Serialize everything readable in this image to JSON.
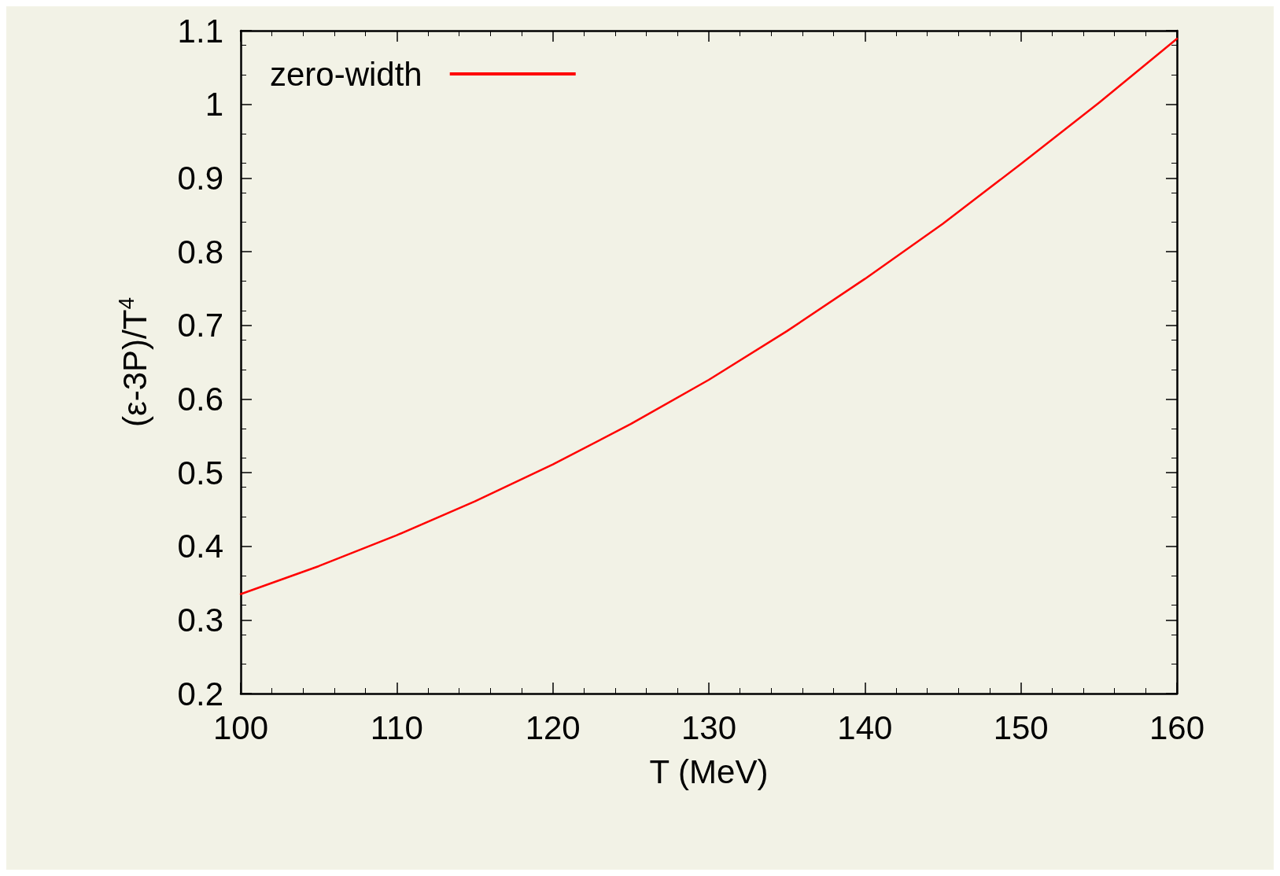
{
  "chart_data": {
    "type": "line",
    "xlabel": "T (MeV)",
    "ylabel": "(ε-3P)/T$^{4}$",
    "x": [
      100,
      105,
      110,
      115,
      120,
      125,
      130,
      135,
      140,
      145,
      150,
      155,
      160
    ],
    "series": [
      {
        "name": "zero-width",
        "color": "#ff0000",
        "values": [
          0.335,
          0.373,
          0.415,
          0.461,
          0.511,
          0.566,
          0.626,
          0.692,
          0.763,
          0.838,
          0.919,
          1.002,
          1.089
        ]
      }
    ],
    "xlim": [
      100,
      160
    ],
    "ylim": [
      0.2,
      1.1
    ],
    "xticks": [
      100,
      110,
      120,
      130,
      140,
      150,
      160
    ],
    "yticks": [
      0.2,
      0.3,
      0.4,
      0.5,
      0.6,
      0.7,
      0.8,
      0.9,
      1,
      1.1
    ],
    "legend": "top left",
    "grid": false,
    "marker": "none",
    "line_style": "solid"
  }
}
